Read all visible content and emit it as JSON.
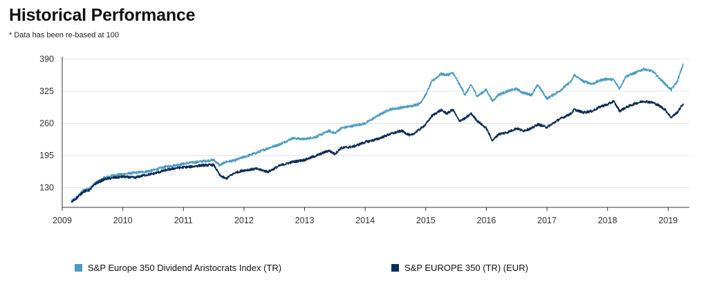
{
  "title": "Historical Performance",
  "subtitle": "* Data has been re-based at 100",
  "colors": {
    "series1": "#4d9cc3",
    "series2": "#0b2d57",
    "grid": "#e3e3e3",
    "axis": "#333333"
  },
  "chart_data": {
    "type": "line",
    "title": "Historical Performance",
    "xlabel": "",
    "ylabel": "",
    "xlim": [
      2009.0,
      2019.35
    ],
    "ylim": [
      90,
      395
    ],
    "yticks": [
      130,
      195,
      260,
      325,
      390
    ],
    "xticks": [
      "2009",
      "2010",
      "2011",
      "2012",
      "2013",
      "2014",
      "2015",
      "2016",
      "2017",
      "2018",
      "2019"
    ],
    "grid": true,
    "legend_position": "bottom",
    "series": [
      {
        "name": "S&P Europe 350 Dividend Aristocrats Index (TR)",
        "x": [
          2009.15,
          2009.25,
          2009.35,
          2009.45,
          2009.55,
          2009.7,
          2009.85,
          2010.0,
          2010.2,
          2010.35,
          2010.5,
          2010.7,
          2010.9,
          2011.1,
          2011.3,
          2011.5,
          2011.6,
          2011.7,
          2011.85,
          2012.0,
          2012.2,
          2012.4,
          2012.6,
          2012.8,
          2013.0,
          2013.2,
          2013.4,
          2013.5,
          2013.6,
          2013.8,
          2014.0,
          2014.2,
          2014.4,
          2014.6,
          2014.75,
          2014.9,
          2015.0,
          2015.1,
          2015.25,
          2015.35,
          2015.45,
          2015.55,
          2015.65,
          2015.75,
          2015.85,
          2016.0,
          2016.1,
          2016.2,
          2016.35,
          2016.5,
          2016.6,
          2016.75,
          2016.85,
          2017.0,
          2017.2,
          2017.4,
          2017.45,
          2017.6,
          2017.75,
          2017.9,
          2018.0,
          2018.1,
          2018.2,
          2018.3,
          2018.45,
          2018.6,
          2018.75,
          2018.85,
          2018.95,
          2019.05,
          2019.15,
          2019.25
        ],
        "values": [
          102,
          112,
          125,
          128,
          140,
          150,
          155,
          157,
          160,
          162,
          165,
          172,
          176,
          180,
          183,
          186,
          175,
          182,
          185,
          192,
          200,
          210,
          218,
          230,
          228,
          233,
          245,
          240,
          250,
          255,
          260,
          275,
          288,
          292,
          295,
          300,
          318,
          345,
          360,
          358,
          362,
          340,
          318,
          338,
          315,
          328,
          305,
          318,
          325,
          330,
          322,
          318,
          338,
          310,
          325,
          345,
          358,
          345,
          340,
          348,
          350,
          348,
          330,
          355,
          362,
          370,
          365,
          352,
          340,
          328,
          345,
          380
        ]
      },
      {
        "name": "S&P EUROPE 350 (TR) (EUR)",
        "x": [
          2009.15,
          2009.25,
          2009.35,
          2009.45,
          2009.55,
          2009.7,
          2009.85,
          2010.0,
          2010.2,
          2010.35,
          2010.5,
          2010.7,
          2010.9,
          2011.1,
          2011.3,
          2011.5,
          2011.6,
          2011.7,
          2011.85,
          2012.0,
          2012.2,
          2012.4,
          2012.6,
          2012.8,
          2013.0,
          2013.2,
          2013.4,
          2013.5,
          2013.6,
          2013.8,
          2014.0,
          2014.2,
          2014.4,
          2014.6,
          2014.75,
          2014.9,
          2015.0,
          2015.1,
          2015.25,
          2015.35,
          2015.45,
          2015.55,
          2015.65,
          2015.75,
          2015.85,
          2016.0,
          2016.1,
          2016.2,
          2016.35,
          2016.5,
          2016.6,
          2016.75,
          2016.85,
          2017.0,
          2017.2,
          2017.4,
          2017.45,
          2017.6,
          2017.75,
          2017.9,
          2018.0,
          2018.1,
          2018.2,
          2018.3,
          2018.45,
          2018.6,
          2018.75,
          2018.85,
          2018.95,
          2019.05,
          2019.15,
          2019.25
        ],
        "values": [
          100,
          110,
          122,
          125,
          138,
          147,
          150,
          152,
          150,
          155,
          158,
          165,
          170,
          172,
          175,
          176,
          155,
          148,
          160,
          165,
          168,
          162,
          175,
          182,
          186,
          195,
          205,
          198,
          210,
          213,
          222,
          228,
          238,
          245,
          235,
          248,
          258,
          275,
          287,
          280,
          288,
          265,
          270,
          280,
          265,
          250,
          225,
          238,
          242,
          250,
          245,
          250,
          258,
          252,
          268,
          280,
          288,
          282,
          285,
          295,
          298,
          305,
          285,
          292,
          300,
          305,
          302,
          296,
          288,
          272,
          282,
          300
        ]
      }
    ]
  }
}
